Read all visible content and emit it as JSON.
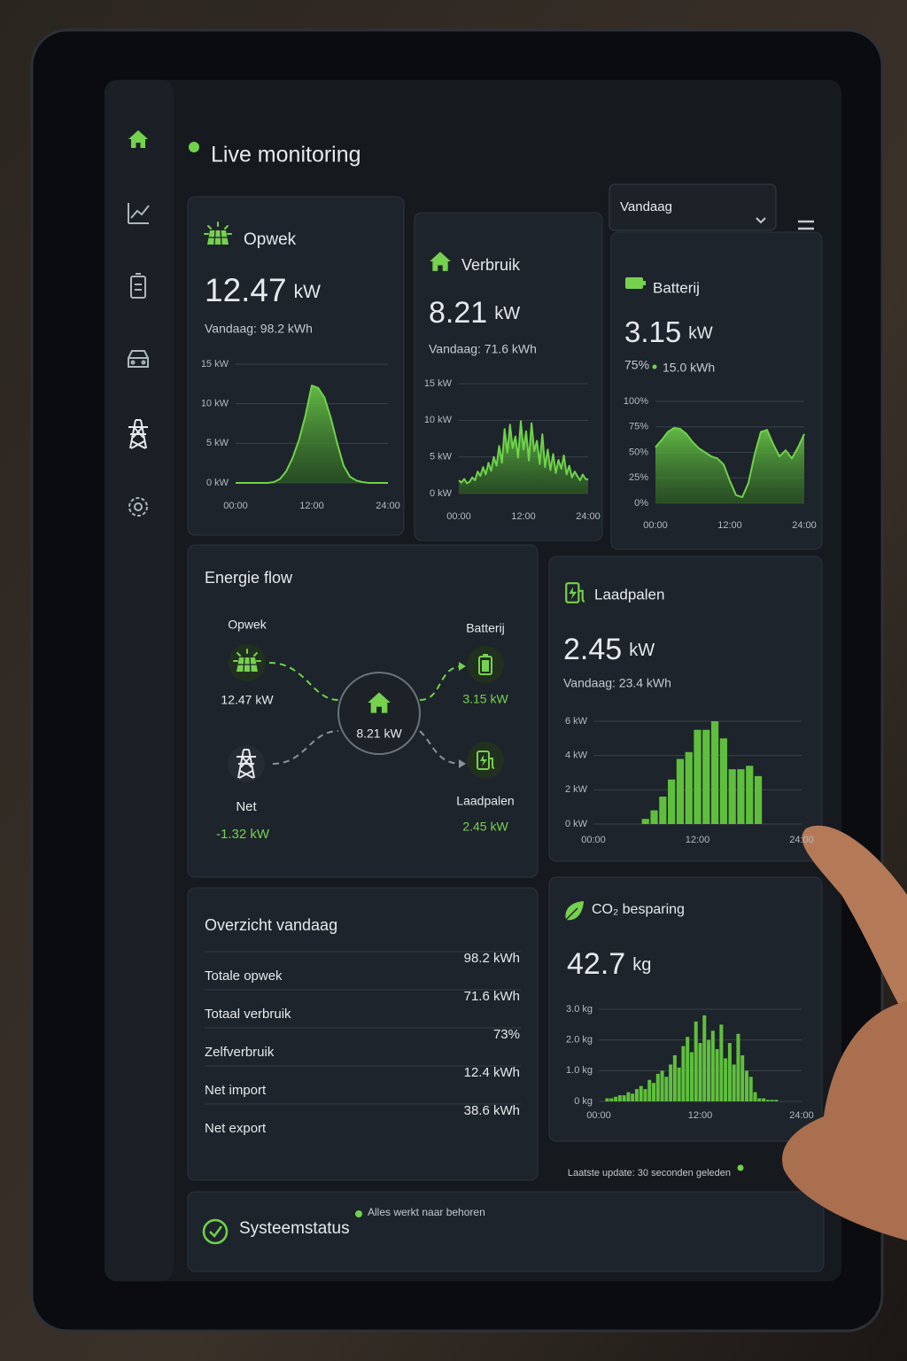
{
  "header": {
    "title": "Live monitoring",
    "period": "Vandaag"
  },
  "opwek": {
    "title": "Opwek",
    "value": "12.47",
    "unit": "kW",
    "subtitle": "Vandaag: 98.2 kWh",
    "chart": {
      "type": "area",
      "color": "#6fd34a",
      "x": [
        0,
        1,
        2,
        3,
        4,
        5,
        6,
        7,
        8,
        9,
        10,
        11,
        12,
        13,
        14,
        15,
        16,
        17,
        18,
        19,
        20,
        21,
        22,
        23,
        24
      ],
      "values": [
        0,
        0,
        0,
        0,
        0,
        0,
        0.1,
        0.5,
        1.5,
        3.2,
        5.5,
        8.5,
        12.3,
        12.0,
        10.8,
        8.2,
        5.0,
        2.2,
        0.8,
        0.3,
        0.1,
        0,
        0,
        0,
        0
      ],
      "xlim": [
        0,
        24
      ],
      "xticks": [
        {
          "value": 0,
          "label": "00:00"
        },
        {
          "value": 12,
          "label": "12:00"
        },
        {
          "value": 24,
          "label": "24:00"
        }
      ],
      "ylim": [
        0,
        15
      ],
      "yticks": [
        {
          "value": 0,
          "label": "0 kW"
        },
        {
          "value": 5,
          "label": "5 kW"
        },
        {
          "value": 10,
          "label": "10 kW"
        },
        {
          "value": 15,
          "label": "15 kW"
        }
      ]
    }
  },
  "verbruik": {
    "title": "Verbruik",
    "value": "8.21",
    "unit": "kW",
    "subtitle": "Vandaag: 71.6 kWh",
    "chart": {
      "type": "area",
      "color": "#6fd34a",
      "x": [
        0,
        0.5,
        1,
        1.5,
        2,
        2.5,
        3,
        3.5,
        4,
        4.5,
        5,
        5.5,
        6,
        6.5,
        7,
        7.5,
        8,
        8.5,
        9,
        9.5,
        10,
        10.5,
        11,
        11.5,
        12,
        12.5,
        13,
        13.5,
        14,
        14.5,
        15,
        15.5,
        16,
        16.5,
        17,
        17.5,
        18,
        18.5,
        19,
        19.5,
        20,
        20.5,
        21,
        21.5,
        22,
        22.5,
        23,
        23.5,
        24
      ],
      "values": [
        1.8,
        1.5,
        2.0,
        1.4,
        1.6,
        2.2,
        1.8,
        3.0,
        2.4,
        3.6,
        2.6,
        4.2,
        3.1,
        5.0,
        3.8,
        6.5,
        4.2,
        8.8,
        5.6,
        9.4,
        6.2,
        7.8,
        4.9,
        9.9,
        6.0,
        8.5,
        4.5,
        9.6,
        5.8,
        7.2,
        4.0,
        8.1,
        3.6,
        6.0,
        3.2,
        5.4,
        2.8,
        4.6,
        3.4,
        5.2,
        2.6,
        3.8,
        2.2,
        3.0,
        2.4,
        1.8,
        2.6,
        2.0,
        1.9
      ],
      "xlim": [
        0,
        24
      ],
      "xticks": [
        {
          "value": 0,
          "label": "00:00"
        },
        {
          "value": 12,
          "label": "12:00"
        },
        {
          "value": 24,
          "label": "24:00"
        }
      ],
      "ylim": [
        0,
        15
      ],
      "yticks": [
        {
          "value": 0,
          "label": "0 kW"
        },
        {
          "value": 5,
          "label": "5 kW"
        },
        {
          "value": 10,
          "label": "10 kW"
        },
        {
          "value": 15,
          "label": "15 kW"
        }
      ]
    }
  },
  "batterij": {
    "title": "Batterij",
    "value": "3.15",
    "unit": "kW",
    "charge": "75%",
    "energy": "15.0 kWh",
    "chart": {
      "type": "area",
      "color": "#6fd34a",
      "x": [
        0,
        1,
        2,
        3,
        4,
        5,
        6,
        7,
        8,
        9,
        10,
        11,
        12,
        13,
        14,
        15,
        16,
        17,
        18,
        19,
        20,
        21,
        22,
        23,
        24
      ],
      "values": [
        55,
        62,
        70,
        74,
        73,
        68,
        60,
        54,
        50,
        46,
        44,
        38,
        22,
        8,
        6,
        20,
        48,
        70,
        72,
        58,
        46,
        52,
        44,
        55,
        68
      ],
      "xlim": [
        0,
        24
      ],
      "xticks": [
        {
          "value": 0,
          "label": "00:00"
        },
        {
          "value": 12,
          "label": "12:00"
        },
        {
          "value": 24,
          "label": "24:00"
        }
      ],
      "ylim": [
        0,
        100
      ],
      "yticks": [
        {
          "value": 0,
          "label": "0%"
        },
        {
          "value": 25,
          "label": "25%"
        },
        {
          "value": 50,
          "label": "50%"
        },
        {
          "value": 75,
          "label": "75%"
        },
        {
          "value": 100,
          "label": "100%"
        }
      ]
    }
  },
  "energy_flow": {
    "title": "Energie flow",
    "house": "8.21 kW",
    "opwek": {
      "label": "Opwek",
      "value": "12.47 kW"
    },
    "batterij": {
      "label": "Batterij",
      "value": "3.15 kW"
    },
    "net": {
      "label": "Net",
      "value": "-1.32 kW"
    },
    "laadpalen": {
      "label": "Laadpalen",
      "value": "2.45 kW"
    }
  },
  "laadpalen": {
    "title": "Laadpalen",
    "value": "2.45",
    "unit": "kW",
    "subtitle": "Vandaag: 23.4 kWh",
    "chart": {
      "type": "bar",
      "color": "#5fbf3d",
      "x": [
        6,
        7,
        8,
        9,
        10,
        11,
        12,
        13,
        14,
        15,
        16,
        17,
        18,
        19
      ],
      "values": [
        0.3,
        0.8,
        1.6,
        2.6,
        3.8,
        4.2,
        5.5,
        5.5,
        6.0,
        5.0,
        3.2,
        3.2,
        3.4,
        2.8
      ],
      "xlim": [
        0,
        24
      ],
      "xticks": [
        {
          "value": 0,
          "label": "00:00"
        },
        {
          "value": 12,
          "label": "12:00"
        },
        {
          "value": 24,
          "label": "24:00"
        }
      ],
      "ylim": [
        0,
        6
      ],
      "yticks": [
        {
          "value": 0,
          "label": "0 kW"
        },
        {
          "value": 2,
          "label": "2 kW"
        },
        {
          "value": 4,
          "label": "4 kW"
        },
        {
          "value": 6,
          "label": "6 kW"
        }
      ]
    }
  },
  "overview": {
    "title": "Overzicht vandaag",
    "rows": [
      [
        "Totale opwek",
        "98.2 kWh"
      ],
      [
        "Totaal verbruik",
        "71.6 kWh"
      ],
      [
        "Zelfverbruik",
        "73%"
      ],
      [
        "Net import",
        "12.4 kWh"
      ],
      [
        "Net export",
        "38.6 kWh"
      ]
    ]
  },
  "co2": {
    "title": "CO₂ besparing",
    "value": "42.7",
    "unit": "kg",
    "chart": {
      "type": "bar",
      "color": "#5fbf3d",
      "x": [
        1,
        1.5,
        2,
        2.5,
        3,
        3.5,
        4,
        4.5,
        5,
        5.5,
        6,
        6.5,
        7,
        7.5,
        8,
        8.5,
        9,
        9.5,
        10,
        10.5,
        11,
        11.5,
        12,
        12.5,
        13,
        13.5,
        14,
        14.5,
        15,
        15.5,
        16,
        16.5,
        17,
        17.5,
        18,
        18.5,
        19,
        19.5,
        20,
        20.5,
        21
      ],
      "values": [
        0.1,
        0.1,
        0.15,
        0.2,
        0.2,
        0.3,
        0.25,
        0.4,
        0.5,
        0.4,
        0.7,
        0.6,
        0.9,
        1.0,
        0.8,
        1.2,
        1.5,
        1.1,
        1.8,
        2.1,
        1.6,
        2.6,
        1.9,
        2.8,
        2.0,
        2.3,
        1.7,
        2.5,
        1.4,
        1.9,
        1.2,
        2.2,
        1.5,
        1.0,
        0.8,
        0.3,
        0.1,
        0.1,
        0.05,
        0.05,
        0.05
      ],
      "xlim": [
        0,
        24
      ],
      "xticks": [
        {
          "value": 0,
          "label": "00:00"
        },
        {
          "value": 12,
          "label": "12:00"
        },
        {
          "value": 24,
          "label": "24:00"
        }
      ],
      "ylim": [
        0,
        3
      ],
      "yticks": [
        {
          "value": 0,
          "label": "0 kg"
        },
        {
          "value": 1,
          "label": "1.0 kg"
        },
        {
          "value": 2,
          "label": "2.0 kg"
        },
        {
          "value": 3,
          "label": "3.0 kg"
        }
      ]
    }
  },
  "status": {
    "title": "Systeemstatus",
    "message": "Alles werkt naar behoren",
    "last_update": "Laatste update: 30 seconden geleden"
  }
}
